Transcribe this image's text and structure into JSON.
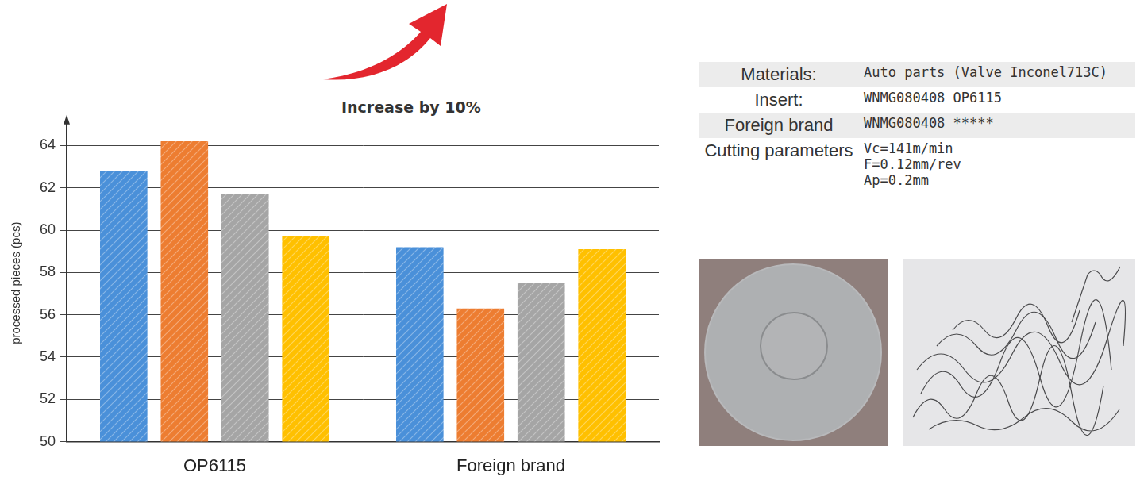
{
  "chart_data": {
    "type": "bar",
    "categories": [
      "OP6115",
      "Foreign brand"
    ],
    "series": [
      {
        "color": "#4a90d9",
        "values": [
          62.8,
          59.2
        ]
      },
      {
        "color": "#ed7d31",
        "values": [
          64.2,
          56.3
        ]
      },
      {
        "color": "#a5a5a5",
        "values": [
          61.7,
          57.5
        ]
      },
      {
        "color": "#ffc000",
        "values": [
          59.7,
          59.1
        ]
      }
    ],
    "y_label": "processed pieces (pcs)",
    "ylim": [
      50,
      65
    ],
    "yticks": [
      50,
      52,
      54,
      56,
      58,
      60,
      62,
      64
    ],
    "grid": true,
    "annotations": [
      "Increase by 10%"
    ]
  },
  "table": {
    "rows": [
      [
        "Materials:",
        [
          "Auto parts (Valve Inconel713C)"
        ]
      ],
      [
        "Insert:",
        [
          "WNMG080408  OP6115"
        ]
      ],
      [
        "Foreign brand",
        [
          "WNMG080408 *****"
        ]
      ],
      [
        "Cutting parameters",
        [
          "Vc=141m/min",
          "F=0.12mm/rev",
          "Ap=0.2mm"
        ]
      ]
    ]
  }
}
